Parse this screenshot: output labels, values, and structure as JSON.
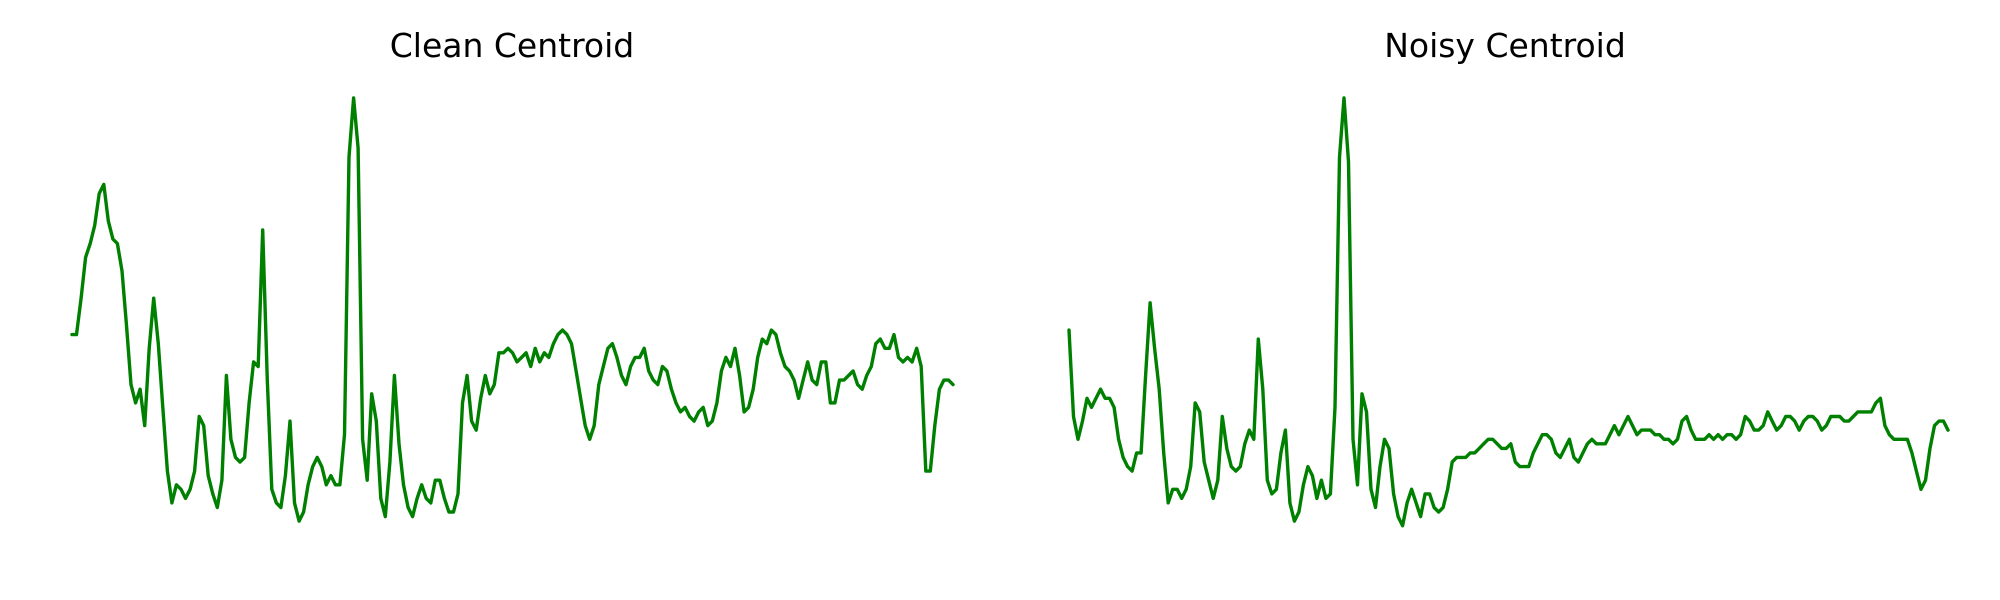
{
  "chart_data": [
    {
      "type": "line",
      "title": "Clean Centroid",
      "xlabel": "",
      "ylabel": "",
      "grid": false,
      "axes_visible": false,
      "ylim": [
        0,
        1
      ],
      "color": "#008000",
      "series": [
        {
          "values": [
            0.48,
            0.48,
            0.56,
            0.65,
            0.68,
            0.72,
            0.79,
            0.81,
            0.73,
            0.69,
            0.68,
            0.62,
            0.5,
            0.37,
            0.33,
            0.36,
            0.28,
            0.45,
            0.56,
            0.46,
            0.32,
            0.18,
            0.11,
            0.15,
            0.14,
            0.12,
            0.14,
            0.18,
            0.3,
            0.28,
            0.17,
            0.13,
            0.1,
            0.16,
            0.39,
            0.25,
            0.21,
            0.2,
            0.21,
            0.33,
            0.42,
            0.41,
            0.71,
            0.38,
            0.14,
            0.11,
            0.1,
            0.17,
            0.29,
            0.11,
            0.07,
            0.09,
            0.15,
            0.19,
            0.21,
            0.19,
            0.15,
            0.17,
            0.15,
            0.15,
            0.26,
            0.87,
            1.0,
            0.89,
            0.25,
            0.16,
            0.35,
            0.29,
            0.12,
            0.08,
            0.2,
            0.39,
            0.24,
            0.15,
            0.1,
            0.08,
            0.12,
            0.15,
            0.12,
            0.11,
            0.16,
            0.16,
            0.12,
            0.09,
            0.09,
            0.13,
            0.33,
            0.39,
            0.29,
            0.27,
            0.34,
            0.39,
            0.35,
            0.37,
            0.44,
            0.44,
            0.45,
            0.44,
            0.42,
            0.43,
            0.44,
            0.41,
            0.45,
            0.42,
            0.44,
            0.43,
            0.46,
            0.48,
            0.49,
            0.48,
            0.46,
            0.4,
            0.34,
            0.28,
            0.25,
            0.28,
            0.37,
            0.41,
            0.45,
            0.46,
            0.43,
            0.39,
            0.37,
            0.41,
            0.43,
            0.43,
            0.45,
            0.4,
            0.38,
            0.37,
            0.41,
            0.4,
            0.36,
            0.33,
            0.31,
            0.32,
            0.3,
            0.29,
            0.31,
            0.32,
            0.28,
            0.29,
            0.33,
            0.4,
            0.43,
            0.41,
            0.45,
            0.39,
            0.31,
            0.32,
            0.36,
            0.43,
            0.47,
            0.46,
            0.49,
            0.48,
            0.44,
            0.41,
            0.4,
            0.38,
            0.34,
            0.38,
            0.42,
            0.38,
            0.37,
            0.42,
            0.42,
            0.33,
            0.33,
            0.38,
            0.38,
            0.39,
            0.4,
            0.37,
            0.36,
            0.39,
            0.41,
            0.46,
            0.47,
            0.45,
            0.45,
            0.48,
            0.43,
            0.42,
            0.43,
            0.42,
            0.45,
            0.41,
            0.18,
            0.18,
            0.28,
            0.36,
            0.38,
            0.38,
            0.37
          ]
        }
      ]
    },
    {
      "type": "line",
      "title": "Noisy Centroid",
      "xlabel": "",
      "ylabel": "",
      "grid": false,
      "axes_visible": false,
      "ylim": [
        0,
        1
      ],
      "color": "#008000",
      "series": [
        {
          "values": [
            0.49,
            0.3,
            0.25,
            0.29,
            0.34,
            0.32,
            0.34,
            0.36,
            0.34,
            0.34,
            0.32,
            0.25,
            0.21,
            0.19,
            0.18,
            0.22,
            0.22,
            0.39,
            0.55,
            0.45,
            0.36,
            0.22,
            0.11,
            0.14,
            0.14,
            0.12,
            0.14,
            0.19,
            0.33,
            0.31,
            0.2,
            0.16,
            0.12,
            0.16,
            0.3,
            0.23,
            0.19,
            0.18,
            0.19,
            0.24,
            0.27,
            0.25,
            0.47,
            0.36,
            0.16,
            0.13,
            0.14,
            0.22,
            0.27,
            0.11,
            0.07,
            0.09,
            0.15,
            0.19,
            0.17,
            0.12,
            0.16,
            0.12,
            0.13,
            0.32,
            0.87,
            1.0,
            0.86,
            0.25,
            0.15,
            0.35,
            0.31,
            0.14,
            0.1,
            0.19,
            0.25,
            0.23,
            0.13,
            0.08,
            0.06,
            0.11,
            0.14,
            0.11,
            0.08,
            0.13,
            0.13,
            0.1,
            0.09,
            0.1,
            0.14,
            0.2,
            0.21,
            0.21,
            0.21,
            0.22,
            0.22,
            0.23,
            0.24,
            0.25,
            0.25,
            0.24,
            0.23,
            0.23,
            0.24,
            0.2,
            0.19,
            0.19,
            0.19,
            0.22,
            0.24,
            0.26,
            0.26,
            0.25,
            0.22,
            0.21,
            0.23,
            0.25,
            0.21,
            0.2,
            0.22,
            0.24,
            0.25,
            0.24,
            0.24,
            0.24,
            0.26,
            0.28,
            0.26,
            0.28,
            0.3,
            0.28,
            0.26,
            0.27,
            0.27,
            0.27,
            0.26,
            0.26,
            0.25,
            0.25,
            0.24,
            0.25,
            0.29,
            0.3,
            0.27,
            0.25,
            0.25,
            0.25,
            0.26,
            0.25,
            0.26,
            0.25,
            0.26,
            0.26,
            0.25,
            0.26,
            0.3,
            0.29,
            0.27,
            0.27,
            0.28,
            0.31,
            0.29,
            0.27,
            0.28,
            0.3,
            0.3,
            0.29,
            0.27,
            0.29,
            0.3,
            0.3,
            0.29,
            0.27,
            0.28,
            0.3,
            0.3,
            0.3,
            0.29,
            0.29,
            0.3,
            0.31,
            0.31,
            0.31,
            0.31,
            0.33,
            0.34,
            0.28,
            0.26,
            0.25,
            0.25,
            0.25,
            0.25,
            0.22,
            0.18,
            0.14,
            0.16,
            0.23,
            0.28,
            0.29,
            0.29,
            0.27
          ]
        }
      ]
    }
  ]
}
